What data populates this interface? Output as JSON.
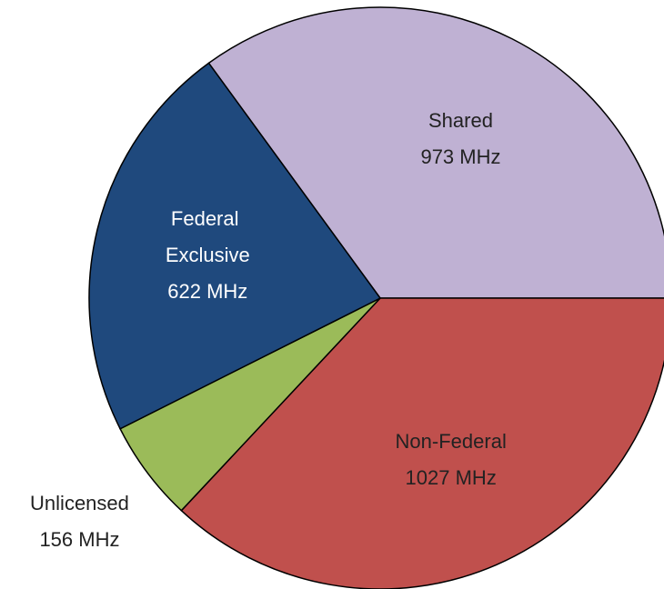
{
  "chart_data": {
    "type": "pie",
    "categories": [
      "Shared",
      "Non-Federal",
      "Unlicensed",
      "Federal Exclusive"
    ],
    "values": [
      973,
      1027,
      156,
      622
    ],
    "value_labels": [
      "973 MHz",
      "1027 MHz",
      "156 MHz",
      "622 MHz"
    ],
    "colors": [
      "#bfb1d3",
      "#c0504d",
      "#9bbb59",
      "#1f497d"
    ]
  }
}
